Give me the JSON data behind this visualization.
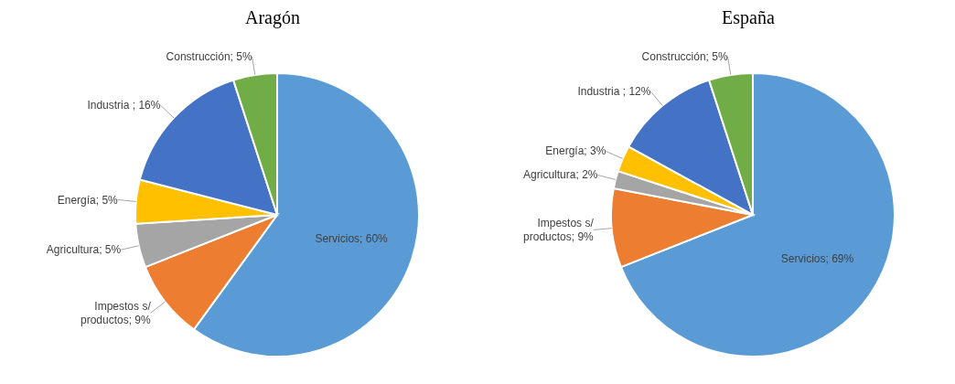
{
  "chart_data": [
    {
      "type": "pie",
      "title": "Aragón",
      "categories": [
        "Servicios",
        "Impestos s/ productos",
        "Agricultura",
        "Energía",
        "Industria ",
        "Construcción"
      ],
      "values": [
        60,
        9,
        5,
        5,
        16,
        5
      ],
      "colors": [
        "#5b9bd5",
        "#ed7d31",
        "#a5a5a5",
        "#ffc000",
        "#4472c4",
        "#70ad47"
      ],
      "value_labels": [
        "60%",
        "9%",
        "5%",
        "5%",
        "16%",
        "5%"
      ]
    },
    {
      "type": "pie",
      "title": "España",
      "categories": [
        "Servicios",
        "Impestos s/ productos",
        "Agricultura",
        "Energía",
        "Industria ",
        "Construcción"
      ],
      "values": [
        69,
        9,
        2,
        3,
        12,
        5
      ],
      "colors": [
        "#5b9bd5",
        "#ed7d31",
        "#a5a5a5",
        "#ffc000",
        "#4472c4",
        "#70ad47"
      ],
      "value_labels": [
        "69%",
        "9%",
        "2%",
        "3%",
        "12%",
        "5%"
      ]
    }
  ]
}
